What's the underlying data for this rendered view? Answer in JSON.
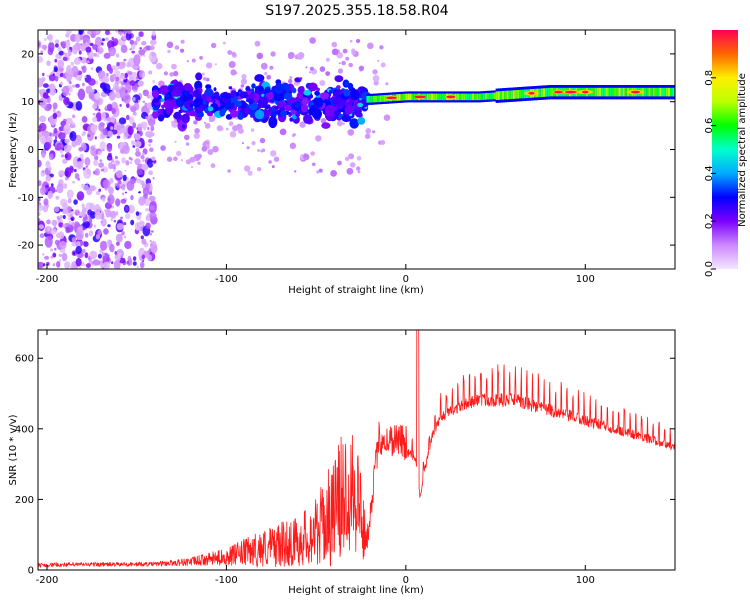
{
  "title": "S197.2025.355.18.58.R04",
  "chart_data": [
    {
      "type": "heatmap",
      "panel": "spectrogram",
      "xlabel": "Height of straight line (km)",
      "ylabel": "Frequency (Hz)",
      "xlim": [
        -205,
        150
      ],
      "ylim": [
        -25,
        25
      ],
      "xticks": [
        -200,
        -100,
        0,
        100
      ],
      "yticks": [
        -20,
        -10,
        0,
        10,
        20
      ],
      "colorbar": {
        "label": "Normalized spectral amplitude",
        "range": [
          0,
          1
        ],
        "ticks": [
          0.0,
          0.2,
          0.4,
          0.6,
          0.8
        ],
        "tick_labels": [
          "0.0",
          "0.2",
          "0.4",
          "0.6",
          "0.8"
        ]
      },
      "features": {
        "noise_region_x": [
          -205,
          -150
        ],
        "scatter_region_x": [
          -140,
          -22
        ],
        "scatter_center_freq_hz": 10,
        "tone_line_x": [
          -22,
          150
        ],
        "tone_freq_hz": [
          [
            -20,
            10.5
          ],
          [
            0,
            11
          ],
          [
            20,
            11
          ],
          [
            40,
            11
          ],
          [
            60,
            11.5
          ],
          [
            80,
            12
          ],
          [
            100,
            12
          ],
          [
            120,
            12
          ],
          [
            140,
            12
          ],
          [
            150,
            12
          ]
        ],
        "hotspots_x": [
          -8,
          8,
          25,
          70,
          85,
          92,
          100,
          128
        ]
      }
    },
    {
      "type": "line",
      "panel": "snr",
      "xlabel": "Height of straight line (km)",
      "ylabel": "SNR (10 * v/v)",
      "xlim": [
        -205,
        150
      ],
      "ylim": [
        0,
        680
      ],
      "xticks": [
        -200,
        -100,
        0,
        100
      ],
      "yticks": [
        0,
        200,
        400,
        600
      ],
      "color": "#ff0000",
      "series": [
        {
          "name": "SNR",
          "x": [
            -205,
            -180,
            -160,
            -140,
            -120,
            -100,
            -80,
            -60,
            -50,
            -40,
            -30,
            -25,
            -22,
            -15,
            -10,
            -5,
            0,
            5,
            8,
            10,
            15,
            20,
            30,
            40,
            50,
            60,
            80,
            100,
            120,
            140,
            150
          ],
          "baseline": [
            12,
            14,
            14,
            15,
            20,
            30,
            45,
            60,
            80,
            120,
            200,
            120,
            60,
            360,
            350,
            360,
            340,
            330,
            210,
            280,
            390,
            440,
            470,
            490,
            490,
            490,
            460,
            430,
            400,
            370,
            350
          ],
          "amplitude": [
            10,
            10,
            10,
            10,
            20,
            40,
            90,
            120,
            160,
            260,
            340,
            260,
            60,
            80,
            80,
            80,
            90,
            80,
            60,
            80,
            60,
            80,
            90,
            100,
            110,
            110,
            100,
            90,
            80,
            70,
            60
          ]
        }
      ]
    }
  ]
}
